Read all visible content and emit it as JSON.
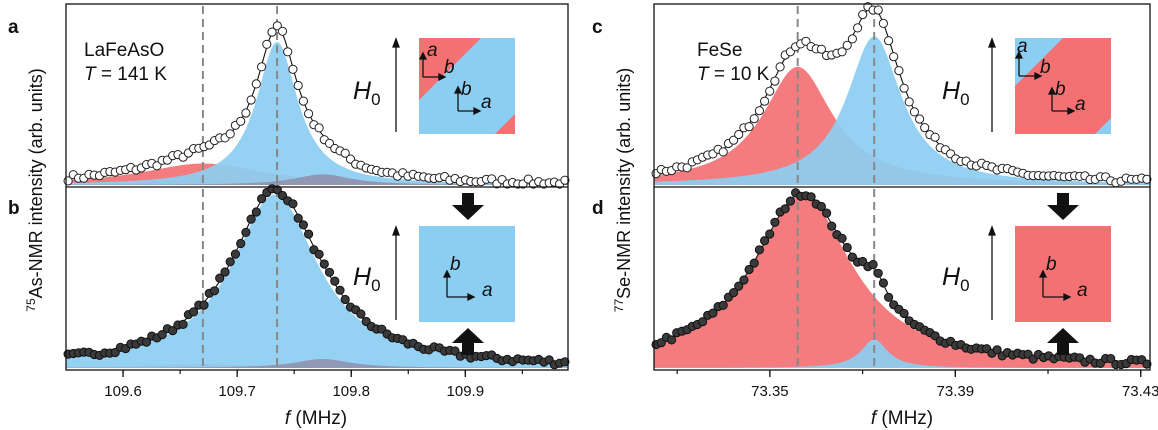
{
  "colors": {
    "red": "#f47173",
    "blue": "#8ccdf2",
    "overlap": "#8e8ea9",
    "marker_dark": "#3a3a3a",
    "marker_open": "#ffffff",
    "guide": "#888888",
    "axis": "#111111"
  },
  "panels": {
    "left": {
      "ylabel_sup": "75",
      "ylabel_main": "As-NMR intensity (arb. units)",
      "xlabel_italic": "f",
      "xlabel_rest": " (MHz)",
      "material": "LaFeAsO",
      "temp_label": "T",
      "temp_value": " = 141 K"
    },
    "right": {
      "ylabel_sup": "77",
      "ylabel_main": "Se-NMR intensity (arb. units)",
      "xlabel_italic": "f",
      "xlabel_rest": " (MHz)",
      "material": "FeSe",
      "temp_label": "T",
      "temp_value": " = 10 K"
    }
  },
  "insets": {
    "field_label": "H",
    "field_sub": "0",
    "axis_a": "a",
    "axis_b": "b"
  },
  "chart_data": [
    {
      "panel": "a",
      "type": "line",
      "material": "LaFeAsO",
      "xlim": [
        109.55,
        109.99
      ],
      "xticks": [
        109.6,
        109.7,
        109.8,
        109.9
      ],
      "xtick_labels": [
        "109.6",
        "109.7",
        "109.8",
        "109.9"
      ],
      "markers": "open",
      "guides_x": [
        109.67,
        109.735
      ],
      "components": [
        {
          "color": "red",
          "center": 109.67,
          "width": 0.065,
          "amp": 0.12
        },
        {
          "color": "blue",
          "center": 109.735,
          "width": 0.022,
          "amp": 0.8
        },
        {
          "color": "overlap",
          "center": 109.775,
          "width": 0.03,
          "amp": 0.06
        }
      ]
    },
    {
      "panel": "b",
      "type": "line",
      "material": "LaFeAsO",
      "xlim": [
        109.55,
        109.99
      ],
      "markers": "filled",
      "guides_x": [
        109.67,
        109.735
      ],
      "components": [
        {
          "color": "red",
          "center": 109.67,
          "width": 0.065,
          "amp": 0.02
        },
        {
          "color": "blue",
          "center": 109.733,
          "width": 0.046,
          "amp": 0.97
        },
        {
          "color": "overlap",
          "center": 109.775,
          "width": 0.03,
          "amp": 0.05
        }
      ]
    },
    {
      "panel": "c",
      "type": "line",
      "material": "FeSe",
      "xlim": [
        73.325,
        73.432
      ],
      "xticks": [
        73.35,
        73.39,
        73.43
      ],
      "xtick_labels": [
        "73.35",
        "73.39",
        "73.43"
      ],
      "markers": "open",
      "guides_x": [
        73.356,
        73.3725
      ],
      "components": [
        {
          "color": "red",
          "center": 73.356,
          "width": 0.0092,
          "amp": 0.66
        },
        {
          "color": "blue",
          "center": 73.3725,
          "width": 0.0072,
          "amp": 0.83
        }
      ]
    },
    {
      "panel": "d",
      "type": "line",
      "material": "FeSe",
      "xlim": [
        73.325,
        73.432
      ],
      "markers": "filled",
      "guides_x": [
        73.356,
        73.3725
      ],
      "components": [
        {
          "color": "red",
          "center": 73.357,
          "width": 0.013,
          "amp": 0.97
        },
        {
          "color": "blue",
          "center": 73.3725,
          "width": 0.0035,
          "amp": 0.16
        }
      ]
    }
  ]
}
